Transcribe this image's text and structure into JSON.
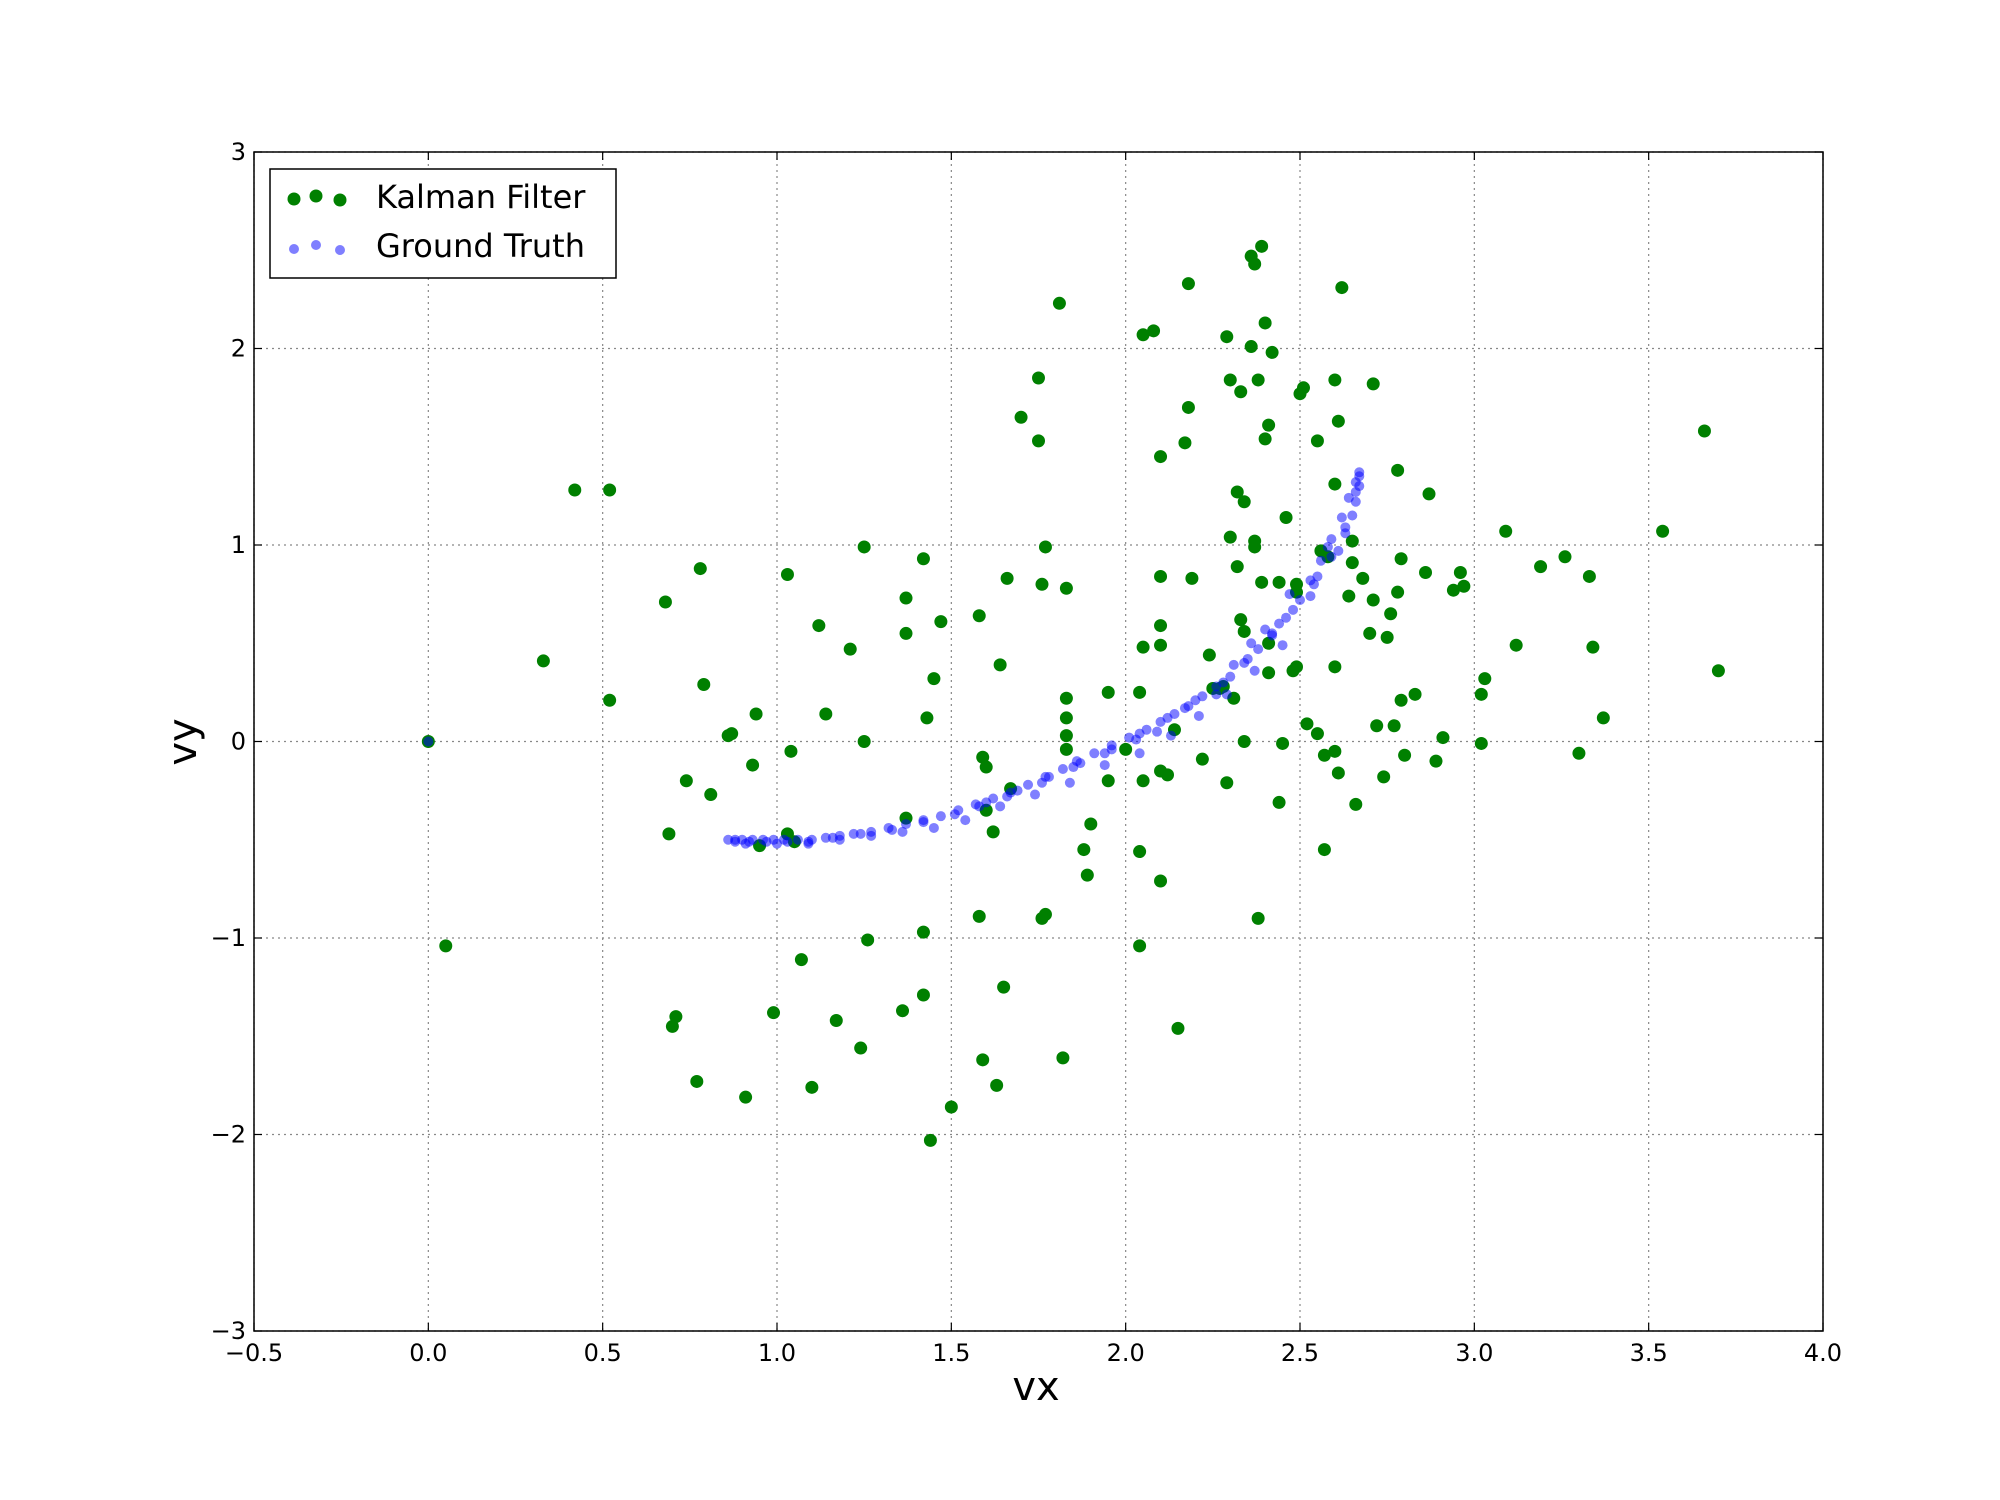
{
  "chart_data": {
    "type": "scatter",
    "xlabel": "vx",
    "ylabel": "vy",
    "xlim": [
      -0.5,
      4.0
    ],
    "ylim": [
      -3,
      3
    ],
    "grid": true,
    "legend_position": "top-left",
    "x_ticks": [
      -0.5,
      0.0,
      0.5,
      1.0,
      1.5,
      2.0,
      2.5,
      3.0,
      3.5,
      4.0
    ],
    "x_tick_labels": [
      "−0.5",
      "0.0",
      "0.5",
      "1.0",
      "1.5",
      "2.0",
      "2.5",
      "3.0",
      "3.5",
      "4.0"
    ],
    "y_ticks": [
      -3,
      -2,
      -1,
      0,
      1,
      2,
      3
    ],
    "y_tick_labels": [
      "−3",
      "−2",
      "−1",
      "0",
      "1",
      "2",
      "3"
    ],
    "series": [
      {
        "name": "Kalman Filter",
        "color": "#008000",
        "points": [
          [
            0.0,
            0.0
          ],
          [
            0.05,
            -1.04
          ],
          [
            0.33,
            0.41
          ],
          [
            0.42,
            1.28
          ],
          [
            0.52,
            1.28
          ],
          [
            0.52,
            0.21
          ],
          [
            0.68,
            0.71
          ],
          [
            0.69,
            -0.47
          ],
          [
            0.7,
            -1.45
          ],
          [
            0.71,
            -1.4
          ],
          [
            0.74,
            -0.2
          ],
          [
            0.77,
            -1.73
          ],
          [
            0.78,
            0.88
          ],
          [
            0.79,
            0.29
          ],
          [
            0.81,
            -0.27
          ],
          [
            0.86,
            0.03
          ],
          [
            0.87,
            0.04
          ],
          [
            0.91,
            -1.81
          ],
          [
            0.93,
            -0.12
          ],
          [
            0.94,
            0.14
          ],
          [
            0.95,
            -0.53
          ],
          [
            0.99,
            -1.38
          ],
          [
            1.03,
            0.85
          ],
          [
            1.03,
            -0.47
          ],
          [
            1.04,
            -0.05
          ],
          [
            1.05,
            -0.51
          ],
          [
            1.07,
            -1.11
          ],
          [
            1.1,
            -1.76
          ],
          [
            1.12,
            0.59
          ],
          [
            1.14,
            0.14
          ],
          [
            1.17,
            -1.42
          ],
          [
            1.21,
            0.47
          ],
          [
            1.24,
            -1.56
          ],
          [
            1.25,
            0.99
          ],
          [
            1.25,
            0.0
          ],
          [
            1.26,
            -1.01
          ],
          [
            1.37,
            0.73
          ],
          [
            1.37,
            0.55
          ],
          [
            1.36,
            -1.37
          ],
          [
            1.37,
            -0.39
          ],
          [
            1.42,
            0.93
          ],
          [
            1.42,
            -0.97
          ],
          [
            1.42,
            -1.29
          ],
          [
            1.43,
            0.12
          ],
          [
            1.45,
            0.32
          ],
          [
            1.47,
            0.61
          ],
          [
            1.44,
            -2.03
          ],
          [
            1.5,
            -1.86
          ],
          [
            1.58,
            0.64
          ],
          [
            1.59,
            -0.08
          ],
          [
            1.58,
            -0.89
          ],
          [
            1.59,
            -1.62
          ],
          [
            1.6,
            -0.13
          ],
          [
            1.6,
            -0.35
          ],
          [
            1.62,
            -0.46
          ],
          [
            1.63,
            -1.75
          ],
          [
            1.64,
            0.39
          ],
          [
            1.65,
            -1.25
          ],
          [
            1.66,
            0.83
          ],
          [
            1.67,
            -0.24
          ],
          [
            1.7,
            1.65
          ],
          [
            1.75,
            1.85
          ],
          [
            1.75,
            1.53
          ],
          [
            1.76,
            0.8
          ],
          [
            1.77,
            0.99
          ],
          [
            1.76,
            -0.9
          ],
          [
            1.77,
            -0.88
          ],
          [
            1.81,
            2.23
          ],
          [
            1.82,
            -1.61
          ],
          [
            1.83,
            0.78
          ],
          [
            1.83,
            0.22
          ],
          [
            1.83,
            0.12
          ],
          [
            1.83,
            0.03
          ],
          [
            1.83,
            -0.04
          ],
          [
            1.88,
            -0.55
          ],
          [
            1.89,
            -0.68
          ],
          [
            1.9,
            -0.42
          ],
          [
            1.95,
            0.25
          ],
          [
            1.95,
            -0.2
          ],
          [
            2.0,
            -0.04
          ],
          [
            2.04,
            0.25
          ],
          [
            2.04,
            -0.56
          ],
          [
            2.04,
            -1.04
          ],
          [
            2.05,
            0.48
          ],
          [
            2.05,
            -0.2
          ],
          [
            2.05,
            2.07
          ],
          [
            2.08,
            2.09
          ],
          [
            2.1,
            1.45
          ],
          [
            2.1,
            0.84
          ],
          [
            2.1,
            0.59
          ],
          [
            2.1,
            0.49
          ],
          [
            2.1,
            -0.15
          ],
          [
            2.1,
            -0.71
          ],
          [
            2.12,
            -0.17
          ],
          [
            2.14,
            0.06
          ],
          [
            2.15,
            -1.46
          ],
          [
            2.17,
            1.52
          ],
          [
            2.18,
            2.33
          ],
          [
            2.18,
            1.7
          ],
          [
            2.19,
            0.83
          ],
          [
            2.22,
            -0.09
          ],
          [
            2.24,
            0.44
          ],
          [
            2.25,
            0.27
          ],
          [
            2.27,
            0.27
          ],
          [
            2.28,
            0.28
          ],
          [
            2.29,
            2.06
          ],
          [
            2.29,
            -0.21
          ],
          [
            2.3,
            1.84
          ],
          [
            2.3,
            1.04
          ],
          [
            2.31,
            0.22
          ],
          [
            2.32,
            0.89
          ],
          [
            2.32,
            1.27
          ],
          [
            2.33,
            1.78
          ],
          [
            2.33,
            0.62
          ],
          [
            2.34,
            1.22
          ],
          [
            2.34,
            0.56
          ],
          [
            2.34,
            0.0
          ],
          [
            2.36,
            2.01
          ],
          [
            2.36,
            2.47
          ],
          [
            2.37,
            2.43
          ],
          [
            2.37,
            1.02
          ],
          [
            2.37,
            0.99
          ],
          [
            2.38,
            1.84
          ],
          [
            2.39,
            2.52
          ],
          [
            2.39,
            0.81
          ],
          [
            2.38,
            -0.9
          ],
          [
            2.4,
            2.13
          ],
          [
            2.4,
            1.54
          ],
          [
            2.41,
            1.61
          ],
          [
            2.41,
            0.5
          ],
          [
            2.41,
            0.35
          ],
          [
            2.42,
            1.98
          ],
          [
            2.44,
            0.81
          ],
          [
            2.44,
            -0.31
          ],
          [
            2.45,
            -0.01
          ],
          [
            2.46,
            1.14
          ],
          [
            2.49,
            0.8
          ],
          [
            2.49,
            0.76
          ],
          [
            2.48,
            0.36
          ],
          [
            2.49,
            0.38
          ],
          [
            2.5,
            1.77
          ],
          [
            2.51,
            1.8
          ],
          [
            2.52,
            0.09
          ],
          [
            2.55,
            0.04
          ],
          [
            2.55,
            1.53
          ],
          [
            2.56,
            0.97
          ],
          [
            2.57,
            -0.07
          ],
          [
            2.57,
            -0.55
          ],
          [
            2.58,
            0.94
          ],
          [
            2.6,
            1.84
          ],
          [
            2.6,
            1.31
          ],
          [
            2.6,
            -0.05
          ],
          [
            2.6,
            0.38
          ],
          [
            2.61,
            1.63
          ],
          [
            2.61,
            -0.16
          ],
          [
            2.62,
            2.31
          ],
          [
            2.64,
            0.74
          ],
          [
            2.65,
            1.02
          ],
          [
            2.65,
            0.91
          ],
          [
            2.66,
            -0.32
          ],
          [
            2.68,
            0.83
          ],
          [
            2.7,
            0.55
          ],
          [
            2.71,
            0.72
          ],
          [
            2.71,
            1.82
          ],
          [
            2.72,
            0.08
          ],
          [
            2.74,
            -0.18
          ],
          [
            2.75,
            0.53
          ],
          [
            2.76,
            0.65
          ],
          [
            2.77,
            0.08
          ],
          [
            2.78,
            1.38
          ],
          [
            2.78,
            0.76
          ],
          [
            2.79,
            0.21
          ],
          [
            2.79,
            0.93
          ],
          [
            2.8,
            -0.07
          ],
          [
            2.83,
            0.24
          ],
          [
            2.86,
            0.86
          ],
          [
            2.87,
            1.26
          ],
          [
            2.89,
            -0.1
          ],
          [
            2.91,
            0.02
          ],
          [
            2.94,
            0.77
          ],
          [
            2.96,
            0.86
          ],
          [
            2.97,
            0.79
          ],
          [
            3.02,
            0.24
          ],
          [
            3.02,
            -0.01
          ],
          [
            3.03,
            0.32
          ],
          [
            3.09,
            1.07
          ],
          [
            3.12,
            0.49
          ],
          [
            3.19,
            0.89
          ],
          [
            3.26,
            0.94
          ],
          [
            3.3,
            -0.06
          ],
          [
            3.33,
            0.84
          ],
          [
            3.34,
            0.48
          ],
          [
            3.37,
            0.12
          ],
          [
            3.54,
            1.07
          ],
          [
            3.66,
            1.58
          ],
          [
            3.7,
            0.36
          ]
        ]
      },
      {
        "name": "Ground Truth",
        "color": "#0000ff",
        "points": [
          [
            0.0,
            0.0
          ],
          [
            0.86,
            -0.5
          ],
          [
            0.88,
            -0.5
          ],
          [
            0.9,
            -0.5
          ],
          [
            0.93,
            -0.5
          ],
          [
            0.96,
            -0.5
          ],
          [
            0.99,
            -0.5
          ],
          [
            1.02,
            -0.5
          ],
          [
            1.06,
            -0.5
          ],
          [
            1.1,
            -0.5
          ],
          [
            1.14,
            -0.49
          ],
          [
            1.18,
            -0.48
          ],
          [
            1.22,
            -0.47
          ],
          [
            1.27,
            -0.46
          ],
          [
            1.32,
            -0.44
          ],
          [
            1.37,
            -0.42
          ],
          [
            1.42,
            -0.4
          ],
          [
            1.47,
            -0.38
          ],
          [
            1.52,
            -0.35
          ],
          [
            1.57,
            -0.32
          ],
          [
            1.62,
            -0.29
          ],
          [
            1.67,
            -0.26
          ],
          [
            1.72,
            -0.22
          ],
          [
            1.77,
            -0.18
          ],
          [
            1.82,
            -0.14
          ],
          [
            1.86,
            -0.1
          ],
          [
            1.91,
            -0.06
          ],
          [
            1.96,
            -0.02
          ],
          [
            2.01,
            0.02
          ],
          [
            2.06,
            0.06
          ],
          [
            2.1,
            0.1
          ],
          [
            2.14,
            0.14
          ],
          [
            2.18,
            0.18
          ],
          [
            2.22,
            0.23
          ],
          [
            2.26,
            0.28
          ],
          [
            2.3,
            0.33
          ],
          [
            2.34,
            0.4
          ],
          [
            2.38,
            0.47
          ],
          [
            2.42,
            0.55
          ],
          [
            2.46,
            0.63
          ],
          [
            2.5,
            0.72
          ],
          [
            2.53,
            0.82
          ],
          [
            2.56,
            0.92
          ],
          [
            2.59,
            1.03
          ],
          [
            2.62,
            1.14
          ],
          [
            2.64,
            1.24
          ],
          [
            2.66,
            1.32
          ],
          [
            2.67,
            1.37
          ],
          [
            0.88,
            -0.51
          ],
          [
            0.92,
            -0.51
          ],
          [
            0.97,
            -0.51
          ],
          [
            1.03,
            -0.51
          ],
          [
            1.09,
            -0.51
          ],
          [
            1.16,
            -0.49
          ],
          [
            1.24,
            -0.47
          ],
          [
            1.33,
            -0.45
          ],
          [
            1.42,
            -0.41
          ],
          [
            1.51,
            -0.37
          ],
          [
            1.6,
            -0.31
          ],
          [
            1.69,
            -0.25
          ],
          [
            1.78,
            -0.18
          ],
          [
            1.87,
            -0.11
          ],
          [
            1.96,
            -0.04
          ],
          [
            2.04,
            0.04
          ],
          [
            2.12,
            0.12
          ],
          [
            2.2,
            0.21
          ],
          [
            2.28,
            0.3
          ],
          [
            2.35,
            0.42
          ],
          [
            2.42,
            0.54
          ],
          [
            2.48,
            0.67
          ],
          [
            2.54,
            0.8
          ],
          [
            2.59,
            0.94
          ],
          [
            2.63,
            1.09
          ],
          [
            2.66,
            1.22
          ],
          [
            2.67,
            1.3
          ],
          [
            1.58,
            -0.33
          ],
          [
            1.66,
            -0.28
          ],
          [
            1.76,
            -0.21
          ],
          [
            1.85,
            -0.13
          ],
          [
            1.94,
            -0.06
          ],
          [
            2.03,
            0.01
          ],
          [
            2.09,
            0.05
          ],
          [
            2.17,
            0.17
          ],
          [
            2.26,
            0.24
          ],
          [
            2.31,
            0.39
          ],
          [
            2.37,
            0.36
          ],
          [
            2.4,
            0.57
          ],
          [
            2.45,
            0.49
          ],
          [
            2.47,
            0.75
          ],
          [
            2.53,
            0.74
          ],
          [
            2.58,
            0.99
          ],
          [
            2.61,
            0.97
          ],
          [
            2.63,
            1.06
          ],
          [
            2.65,
            1.15
          ],
          [
            2.66,
            1.27
          ],
          [
            2.67,
            1.35
          ],
          [
            2.55,
            0.84
          ],
          [
            2.44,
            0.6
          ],
          [
            2.36,
            0.5
          ],
          [
            2.29,
            0.24
          ],
          [
            2.21,
            0.13
          ],
          [
            2.13,
            0.03
          ],
          [
            2.04,
            -0.06
          ],
          [
            1.94,
            -0.12
          ],
          [
            1.84,
            -0.21
          ],
          [
            1.74,
            -0.27
          ],
          [
            1.64,
            -0.33
          ],
          [
            1.54,
            -0.4
          ],
          [
            1.45,
            -0.44
          ],
          [
            1.36,
            -0.46
          ],
          [
            1.27,
            -0.48
          ],
          [
            1.18,
            -0.5
          ],
          [
            1.09,
            -0.52
          ],
          [
            1.0,
            -0.52
          ],
          [
            0.91,
            -0.52
          ]
        ]
      }
    ]
  }
}
